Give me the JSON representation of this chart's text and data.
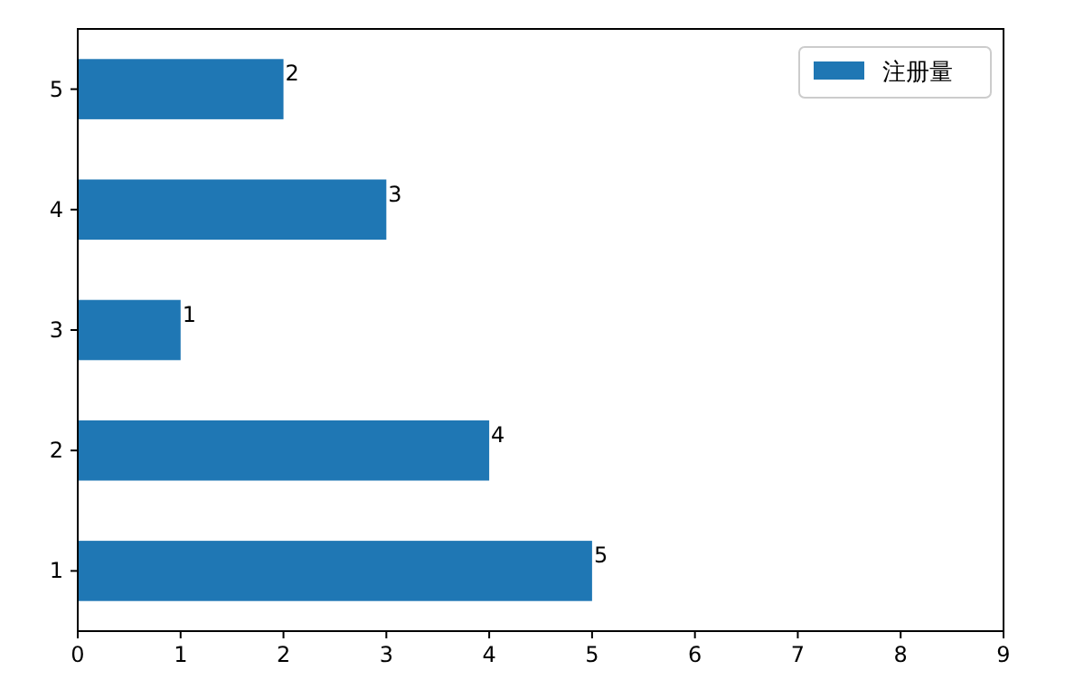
{
  "chart_data": {
    "type": "bar",
    "orientation": "horizontal",
    "categories": [
      "5",
      "4",
      "3",
      "2",
      "1"
    ],
    "series": [
      {
        "name": "注册量",
        "color": "#1f77b4",
        "values": [
          2,
          3,
          1,
          4,
          5
        ]
      }
    ],
    "xlim": [
      0,
      9
    ],
    "xticks": [
      0,
      1,
      2,
      3,
      4,
      5,
      6,
      7,
      8,
      9
    ],
    "data_labels": true,
    "legend": "top right",
    "grid": false
  }
}
